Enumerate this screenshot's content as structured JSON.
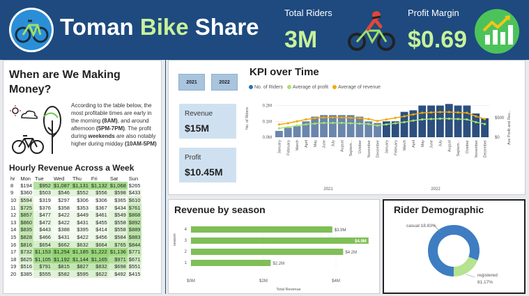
{
  "header": {
    "title_part1": "Toman",
    "title_part2": "Bike",
    "title_part3": "Share",
    "total_riders_label": "Total Riders",
    "total_riders_value": "3M",
    "profit_margin_label": "Profit Margin",
    "profit_margin_value": "$0.69",
    "colors": {
      "bg": "#1e4a7f",
      "accent": "#c7f29a"
    }
  },
  "left_panel": {
    "title": "When are We Making Money?",
    "text_segments": [
      {
        "t": "According to the table below, the most profitable times are early in the morning ",
        "b": false
      },
      {
        "t": "(8AM)",
        "b": true
      },
      {
        "t": ", and around afternoon ",
        "b": false
      },
      {
        "t": "(5PM-7PM)",
        "b": true
      },
      {
        "t": ". The profit during ",
        "b": false
      },
      {
        "t": "weekends",
        "b": true
      },
      {
        "t": " are also notably higher during midday ",
        "b": false
      },
      {
        "t": "(10AM-5PM)",
        "b": true
      }
    ],
    "heatmap_title": "Hourly Revenue Across a Week",
    "heatmap": {
      "columns": [
        "hr",
        "Mon",
        "Tue",
        "Wed",
        "Thu",
        "Fri",
        "Sat",
        "Sun"
      ],
      "rows": [
        [
          "8",
          "$194",
          "$952",
          "$1,087",
          "$1,131",
          "$1,132",
          "$1,068",
          "$265"
        ],
        [
          "9",
          "$360",
          "$503",
          "$546",
          "$552",
          "$556",
          "$598",
          "$433"
        ],
        [
          "10",
          "$594",
          "$319",
          "$297",
          "$306",
          "$306",
          "$365",
          "$610"
        ],
        [
          "11",
          "$725",
          "$376",
          "$358",
          "$353",
          "$367",
          "$434",
          "$761"
        ],
        [
          "12",
          "$857",
          "$477",
          "$422",
          "$449",
          "$461",
          "$549",
          "$868"
        ],
        [
          "13",
          "$860",
          "$472",
          "$422",
          "$431",
          "$455",
          "$558",
          "$892"
        ],
        [
          "14",
          "$835",
          "$443",
          "$388",
          "$395",
          "$414",
          "$558",
          "$889"
        ],
        [
          "15",
          "$828",
          "$466",
          "$431",
          "$422",
          "$456",
          "$584",
          "$883"
        ],
        [
          "16",
          "$816",
          "$654",
          "$662",
          "$632",
          "$664",
          "$765",
          "$844"
        ],
        [
          "17",
          "$732",
          "$1,153",
          "$1,254",
          "$1,185",
          "$1,222",
          "$1,136",
          "$771"
        ],
        [
          "18",
          "$625",
          "$1,105",
          "$1,192",
          "$1,144",
          "$1,165",
          "$971",
          "$671"
        ],
        [
          "19",
          "$516",
          "$791",
          "$815",
          "$827",
          "$832",
          "$698",
          "$551"
        ],
        [
          "20",
          "$385",
          "$555",
          "$582",
          "$595",
          "$622",
          "$492",
          "$415"
        ]
      ]
    }
  },
  "kpi": {
    "title": "KPI over Time",
    "year_buttons": [
      "2021",
      "2022"
    ],
    "revenue_label": "Revenue",
    "revenue_value": "$15M",
    "profit_label": "Profit",
    "profit_value": "$10.45M",
    "legend": [
      {
        "name": "No. of Riders",
        "color": "#2e6eb5"
      },
      {
        "name": "Average of profit",
        "color": "#a6e36b"
      },
      {
        "name": "Average of revenue",
        "color": "#f2a900"
      }
    ],
    "y_left_label": "No. of Riders",
    "y_right_label": "Ave Profit and Rev...",
    "y_left_ticks": [
      "0.0M",
      "0.1M",
      "0.2M"
    ],
    "y_right_ticks": [
      "$0",
      "$500"
    ],
    "year_labels": [
      "2021",
      "2022"
    ]
  },
  "chart_data": [
    {
      "type": "bar",
      "title": "KPI over Time",
      "categories": [
        "January",
        "February",
        "March",
        "April",
        "May",
        "June",
        "July",
        "August",
        "Septem...",
        "October",
        "November",
        "December",
        "January",
        "February",
        "March",
        "April",
        "May",
        "June",
        "July",
        "August",
        "Septem...",
        "October",
        "November",
        "December"
      ],
      "ylim": [
        0,
        0.22
      ],
      "series": [
        {
          "name": "No. of Riders",
          "values": [
            0.04,
            0.06,
            0.07,
            0.1,
            0.13,
            0.14,
            0.14,
            0.14,
            0.14,
            0.13,
            0.1,
            0.09,
            0.1,
            0.1,
            0.16,
            0.17,
            0.2,
            0.2,
            0.2,
            0.21,
            0.2,
            0.2,
            0.15,
            0.12
          ]
        },
        {
          "name": "Average of profit",
          "values": [
            230,
            260,
            300,
            330,
            350,
            370,
            370,
            370,
            360,
            350,
            340,
            300,
            330,
            360,
            390,
            430,
            460,
            470,
            480,
            480,
            470,
            460,
            390,
            340
          ]
        },
        {
          "name": "Average of revenue",
          "values": [
            330,
            360,
            410,
            460,
            490,
            510,
            510,
            510,
            500,
            490,
            470,
            420,
            460,
            500,
            540,
            590,
            630,
            640,
            650,
            650,
            640,
            630,
            540,
            470
          ]
        }
      ]
    },
    {
      "type": "bar",
      "title": "Revenue by season",
      "xlabel": "Total Revenue",
      "ylabel": "season",
      "categories": [
        "4",
        "3",
        "2",
        "1"
      ],
      "values": [
        3.9,
        4.9,
        4.2,
        2.2
      ],
      "labels": [
        "$3.9M",
        "$4.9M",
        "$4.2M",
        "$2.2M"
      ],
      "x_ticks": [
        "$0M",
        "$2M",
        "$4M"
      ],
      "xlim": [
        0,
        5
      ]
    },
    {
      "type": "pie",
      "title": "Rider Demographic",
      "categories": [
        "casual",
        "registered"
      ],
      "values": [
        18.83,
        81.17
      ],
      "labels": [
        "casual 18.83%",
        "registered 81.17%"
      ],
      "colors": [
        "#b5e38f",
        "#3e7dc1"
      ]
    }
  ]
}
